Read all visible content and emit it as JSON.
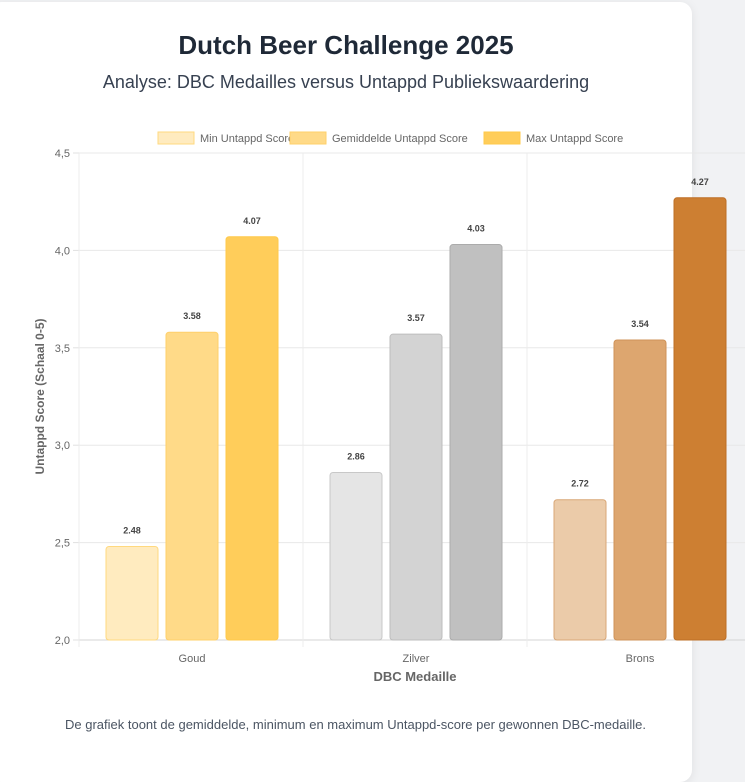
{
  "header": {
    "title": "Dutch Beer Challenge 2025",
    "subtitle": "Analyse: DBC Medailles versus Untappd Publiekswaardering"
  },
  "footer_note": "De grafiek toont de gemiddelde, minimum en maximum Untappd-score per gewonnen DBC-medaille.",
  "chart_data": {
    "type": "bar",
    "categories": [
      "Goud",
      "Zilver",
      "Brons"
    ],
    "series": [
      {
        "name": "Min Untappd Score",
        "values": [
          2.48,
          2.86,
          2.72
        ]
      },
      {
        "name": "Gemiddelde Untappd Score",
        "values": [
          3.58,
          3.57,
          3.54
        ]
      },
      {
        "name": "Max Untappd Score",
        "values": [
          4.07,
          4.03,
          4.27
        ]
      }
    ],
    "data_labels": [
      [
        "2.48",
        "2.86",
        "2.72"
      ],
      [
        "3.58",
        "3.57",
        "3.54"
      ],
      [
        "4.07",
        "4.03",
        "4.27"
      ]
    ],
    "xlabel": "DBC Medaille",
    "ylabel": "Untappd Score (Schaal 0-5)",
    "ylim": [
      2.0,
      4.5
    ],
    "yticks": [
      "2,0",
      "2,5",
      "3,0",
      "3,5",
      "4,0",
      "4,5"
    ],
    "grid": true,
    "legend_position": "top",
    "colors": {
      "Goud": {
        "fill": [
          "#FFEBBF",
          "#FFDA88",
          "#FFCD5A"
        ],
        "border": [
          "#FFD97F",
          "#FFD06A",
          "#FFC94A"
        ]
      },
      "Zilver": {
        "fill": [
          "#E5E5E5",
          "#D3D3D3",
          "#C0C0C0"
        ],
        "border": [
          "#C8C8C8",
          "#BDBDBD",
          "#ABABAB"
        ]
      },
      "Brons": {
        "fill": [
          "#EBCBA9",
          "#DDA66F",
          "#CD7F32"
        ],
        "border": [
          "#D9A777",
          "#CF9358",
          "#BD6F26"
        ]
      }
    }
  }
}
